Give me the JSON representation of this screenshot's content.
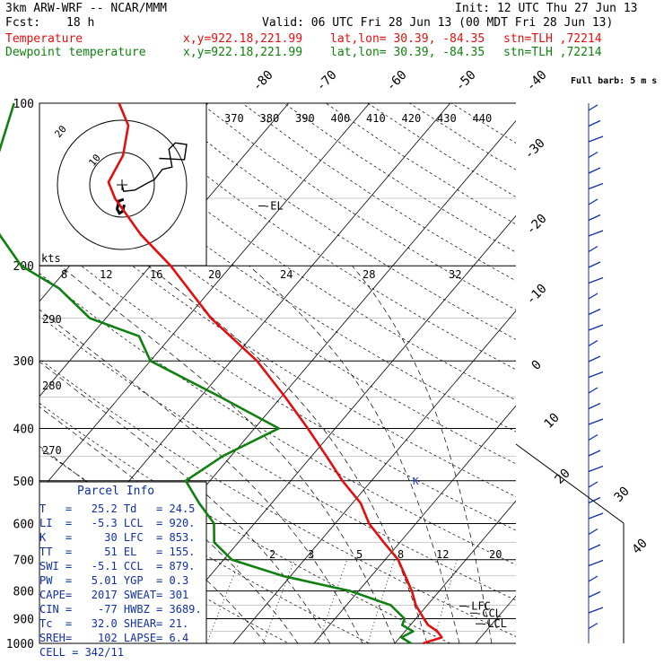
{
  "header": {
    "model": "3km ARW-WRF -- NCAR/MMM",
    "init": "Init: 12 UTC Thu 27 Jun 13",
    "fcst_label": "Fcst:",
    "fcst_value": "18 h",
    "valid": "Valid: 06 UTC Fri 28 Jun 13 (00 MDT Fri 28 Jun 13)",
    "temp_label": "Temperature",
    "dew_label": "Dewpoint temperature",
    "xy": "x,y=922.18,221.99",
    "latlon": "lat,lon= 30.39, -84.35",
    "stn": "stn=TLH ,72214"
  },
  "colors": {
    "temperature": "#e01010",
    "dewpoint": "#108010",
    "info": "#1030a0"
  },
  "chart_data": {
    "type": "line",
    "title": "",
    "y_axis": {
      "scale": "log-pressure",
      "unit": "hPa",
      "range": [
        1000,
        100
      ],
      "ticks": [
        "100",
        "200",
        "300",
        "400",
        "500",
        "600",
        "700",
        "800",
        "900",
        "1000"
      ]
    },
    "isotherm_labels": [
      "-80",
      "-70",
      "-60",
      "-50",
      "-40",
      "-30",
      "-20",
      "-10",
      "0",
      "10",
      "20",
      "30",
      "40"
    ],
    "theta_labels": [
      "370",
      "380",
      "390",
      "400",
      "410",
      "420",
      "430",
      "440"
    ],
    "theta_left_labels": [
      "290",
      "280",
      "270"
    ],
    "mixing_ratio_labels": [
      "2",
      "3",
      "5",
      "8",
      "12",
      "20"
    ],
    "hodo_speed_labels": [
      "8",
      "12",
      "16",
      "20",
      "24",
      "28",
      "32"
    ],
    "hodo_ring_labels": [
      "10",
      "20"
    ],
    "hodo_unit": "kts",
    "annotations": {
      "el": "EL",
      "lfc": "LFC",
      "ccl": "CCL",
      "lcl": "LCL",
      "barb_note": "Full barb: 5 m s"
    },
    "series": [
      {
        "name": "Temperature",
        "color": "#e01010",
        "points": [
          [
            1000,
            23.5
          ],
          [
            975,
            25.2
          ],
          [
            950,
            24.0
          ],
          [
            925,
            22.2
          ],
          [
            900,
            21.0
          ],
          [
            850,
            18.6
          ],
          [
            800,
            16.6
          ],
          [
            750,
            14.2
          ],
          [
            700,
            11.6
          ],
          [
            650,
            8.0
          ],
          [
            600,
            4.2
          ],
          [
            550,
            1.0
          ],
          [
            500,
            -3.6
          ],
          [
            450,
            -8.2
          ],
          [
            400,
            -13.4
          ],
          [
            350,
            -19.5
          ],
          [
            300,
            -26.8
          ],
          [
            250,
            -37.0
          ],
          [
            200,
            -47.5
          ],
          [
            175,
            -54.5
          ],
          [
            150,
            -61.5
          ],
          [
            140,
            -64.0
          ],
          [
            125,
            -65.0
          ],
          [
            110,
            -67.5
          ],
          [
            100,
            -71.0
          ]
        ]
      },
      {
        "name": "Dewpoint temperature",
        "color": "#108010",
        "points": [
          [
            1000,
            22.0
          ],
          [
            975,
            20.2
          ],
          [
            950,
            21.0
          ],
          [
            925,
            19.0
          ],
          [
            900,
            18.6
          ],
          [
            850,
            15.5
          ],
          [
            800,
            9.0
          ],
          [
            750,
            -1.0
          ],
          [
            700,
            -9.0
          ],
          [
            650,
            -13.0
          ],
          [
            600,
            -15.0
          ],
          [
            550,
            -19.0
          ],
          [
            500,
            -23.0
          ],
          [
            450,
            -21.0
          ],
          [
            400,
            -17.0
          ],
          [
            350,
            -27.5
          ],
          [
            300,
            -40.0
          ],
          [
            270,
            -44.0
          ],
          [
            250,
            -52.0
          ],
          [
            220,
            -59.0
          ],
          [
            200,
            -66.0
          ],
          [
            175,
            -72.0
          ],
          [
            150,
            -77.0
          ],
          [
            125,
            -80.5
          ],
          [
            110,
            -82.5
          ],
          [
            100,
            -84.0
          ]
        ]
      }
    ],
    "hodograph": [
      [
        0,
        0
      ],
      [
        0.5,
        -2.0
      ],
      [
        4.0,
        -1.6
      ],
      [
        8.0,
        0.6
      ],
      [
        10.0,
        1.6
      ],
      [
        12.5,
        4.8
      ],
      [
        15.5,
        5.5
      ],
      [
        14.5,
        11.0
      ],
      [
        16.5,
        13.0
      ],
      [
        20.0,
        12.5
      ],
      [
        19.3,
        7.8
      ],
      [
        11.5,
        8.2
      ]
    ],
    "hodograph_low": [
      [
        0.5,
        -4.5
      ],
      [
        -1.0,
        -5.0
      ],
      [
        -1.5,
        -7.5
      ],
      [
        -0.8,
        -8.8
      ],
      [
        0.2,
        -8.2
      ],
      [
        0.7,
        -6.2
      ]
    ]
  },
  "parcel": {
    "title": "Parcel Info",
    "rows": [
      [
        "T",
        "25.2",
        "Td",
        "24.5"
      ],
      [
        "LI",
        "-5.3",
        "LCL",
        "920."
      ],
      [
        "K",
        "30",
        "LFC",
        "853."
      ],
      [
        "TT",
        "51",
        "EL",
        "155."
      ],
      [
        "SWI",
        "-5.1",
        "CCL",
        "879."
      ],
      [
        "PW",
        "5.01",
        "YGP",
        "0.3"
      ],
      [
        "CAPE",
        "2017",
        "SWEAT",
        "301"
      ],
      [
        "CIN",
        "-77",
        "HWBZ",
        "3689."
      ],
      [
        "Tc",
        "32.0",
        "SHEAR",
        "21."
      ],
      [
        "SREH",
        "102",
        "LAPSE",
        "6.4"
      ]
    ],
    "cell": "CELL = 342/11"
  }
}
